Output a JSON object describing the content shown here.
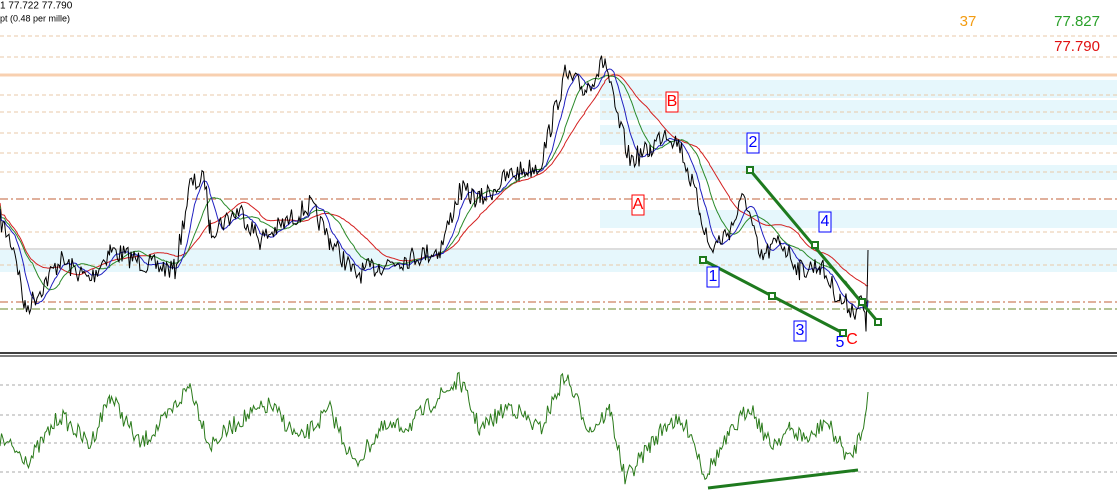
{
  "header": {
    "line1": "1 77.722 77.790",
    "line2": "pt (0.48 per mille)"
  },
  "top_right": {
    "count": "37",
    "ask": "77.827",
    "bid": "77.790"
  },
  "waves": [
    {
      "label": "A",
      "color": "red"
    },
    {
      "label": "B",
      "color": "red"
    },
    {
      "label": "1",
      "color": "blue"
    },
    {
      "label": "2",
      "color": "blue"
    },
    {
      "label": "3",
      "color": "blue"
    },
    {
      "label": "4",
      "color": "blue"
    },
    {
      "label": "5",
      "color": "blue"
    },
    {
      "label": "C",
      "color": "red"
    }
  ]
}
